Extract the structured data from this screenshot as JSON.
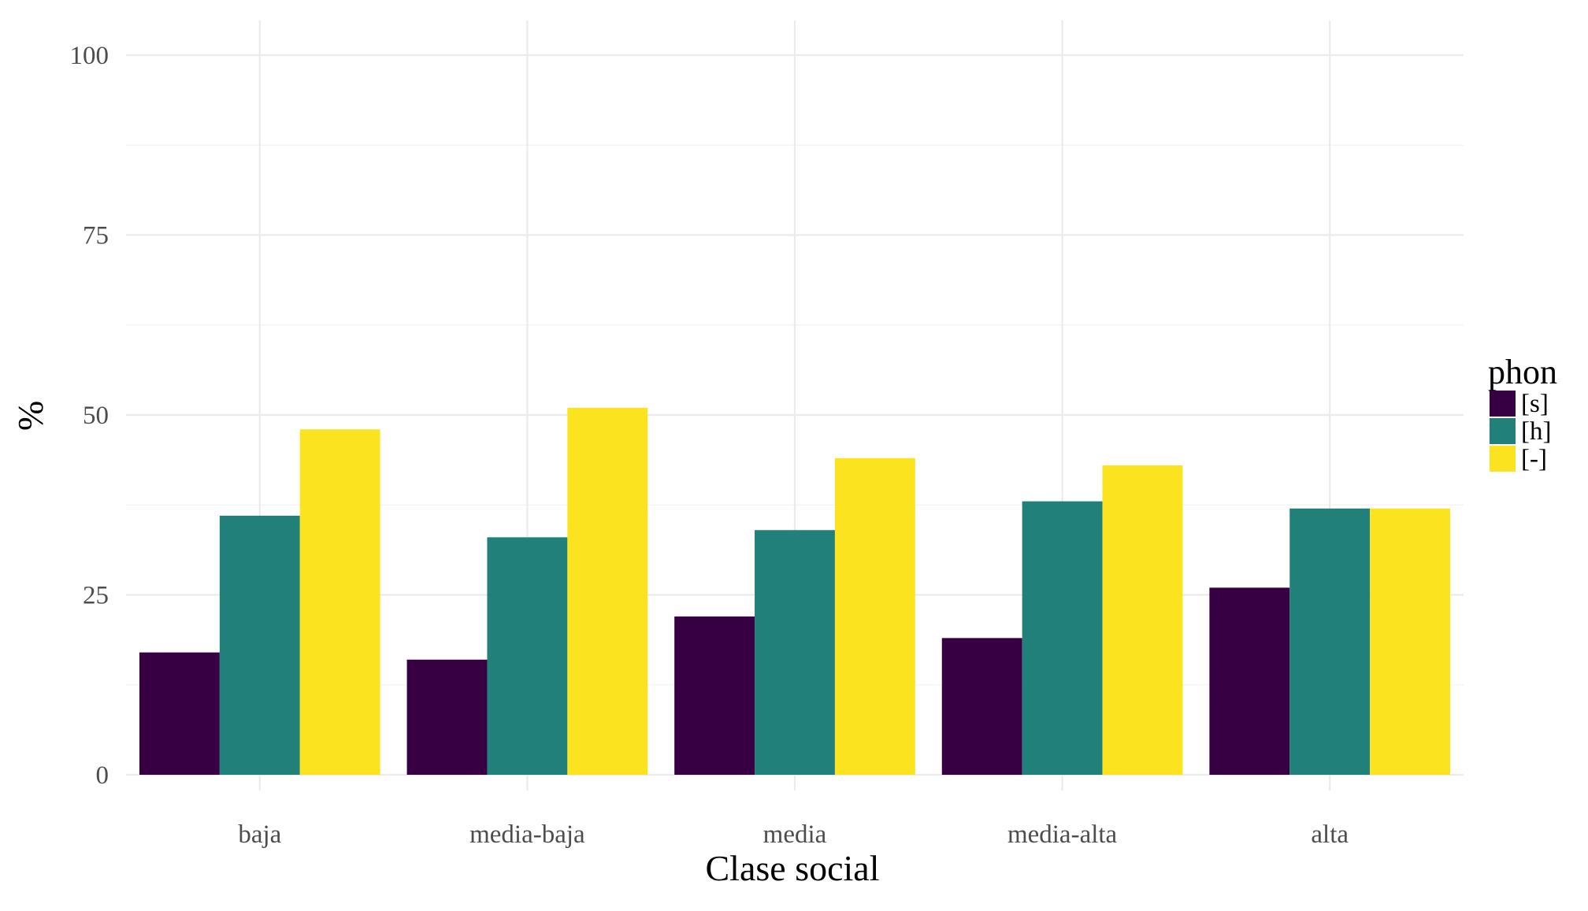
{
  "chart_data": {
    "type": "bar",
    "title": "",
    "xlabel": "Clase social",
    "ylabel": "%",
    "categories": [
      "baja",
      "media-baja",
      "media",
      "media-alta",
      "alta"
    ],
    "series": [
      {
        "name": "[s]",
        "color": "#360042",
        "values": [
          17,
          16,
          22,
          19,
          26
        ]
      },
      {
        "name": "[h]",
        "color": "#21817a",
        "values": [
          36,
          33,
          34,
          38,
          37
        ]
      },
      {
        "name": "[-]",
        "color": "#fbe31f",
        "values": [
          48,
          51,
          44,
          43,
          37
        ]
      }
    ],
    "ylim": [
      0,
      100
    ],
    "yticks": [
      0,
      25,
      50,
      75,
      100
    ],
    "grid": true,
    "legend": {
      "title": "phon",
      "position": "right"
    }
  }
}
